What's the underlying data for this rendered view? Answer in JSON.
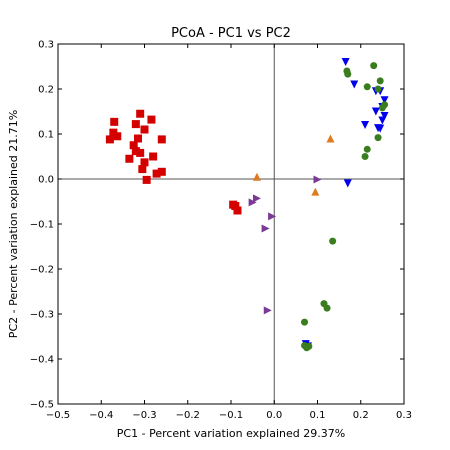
{
  "chart_data": {
    "type": "scatter",
    "title": "PCoA - PC1 vs PC2",
    "xlabel": "PC1 - Percent variation explained 29.37%",
    "ylabel": "PC2 - Percent variation explained 21.71%",
    "xlim": [
      -0.5,
      0.3
    ],
    "ylim": [
      -0.5,
      0.3
    ],
    "xticks": [
      -0.5,
      -0.4,
      -0.3,
      -0.2,
      -0.1,
      0.0,
      0.1,
      0.2,
      0.3
    ],
    "yticks": [
      -0.5,
      -0.4,
      -0.3,
      -0.2,
      -0.1,
      0.0,
      0.1,
      0.2,
      0.3
    ],
    "xtick_labels": [
      "−0.5",
      "−0.4",
      "−0.3",
      "−0.2",
      "−0.1",
      "0.0",
      "0.1",
      "0.2",
      "0.3"
    ],
    "ytick_labels": [
      "−0.5",
      "−0.4",
      "−0.3",
      "−0.2",
      "−0.1",
      "0.0",
      "0.1",
      "0.2",
      "0.3"
    ],
    "zero_lines": true,
    "grid": false,
    "legend": "none",
    "series": [
      {
        "marker": "square",
        "color": "#d40000",
        "points": [
          [
            -0.37,
            0.127
          ],
          [
            -0.372,
            0.103
          ],
          [
            -0.38,
            0.088
          ],
          [
            -0.363,
            0.095
          ],
          [
            -0.31,
            0.145
          ],
          [
            -0.284,
            0.132
          ],
          [
            -0.3,
            0.11
          ],
          [
            -0.32,
            0.122
          ],
          [
            -0.315,
            0.09
          ],
          [
            -0.26,
            0.088
          ],
          [
            -0.325,
            0.075
          ],
          [
            -0.32,
            0.062
          ],
          [
            -0.31,
            0.058
          ],
          [
            -0.335,
            0.045
          ],
          [
            -0.3,
            0.037
          ],
          [
            -0.305,
            0.022
          ],
          [
            -0.28,
            0.05
          ],
          [
            -0.272,
            0.012
          ],
          [
            -0.26,
            0.016
          ],
          [
            -0.295,
            -0.002
          ],
          [
            -0.095,
            -0.057
          ],
          [
            -0.09,
            -0.06
          ],
          [
            -0.085,
            -0.07
          ]
        ]
      },
      {
        "marker": "triangle-down",
        "color": "#0000ee",
        "points": [
          [
            0.165,
            0.26
          ],
          [
            0.185,
            0.21
          ],
          [
            0.235,
            0.195
          ],
          [
            0.245,
            0.195
          ],
          [
            0.255,
            0.175
          ],
          [
            0.25,
            0.16
          ],
          [
            0.235,
            0.15
          ],
          [
            0.255,
            0.14
          ],
          [
            0.25,
            0.13
          ],
          [
            0.21,
            0.12
          ],
          [
            0.24,
            0.113
          ],
          [
            0.245,
            0.112
          ],
          [
            0.17,
            -0.01
          ],
          [
            0.073,
            -0.367
          ],
          [
            0.078,
            -0.372
          ]
        ]
      },
      {
        "marker": "circle",
        "color": "#3a7d1e",
        "points": [
          [
            0.23,
            0.252
          ],
          [
            0.168,
            0.24
          ],
          [
            0.17,
            0.233
          ],
          [
            0.245,
            0.218
          ],
          [
            0.215,
            0.205
          ],
          [
            0.24,
            0.2
          ],
          [
            0.255,
            0.165
          ],
          [
            0.25,
            0.158
          ],
          [
            0.24,
            0.092
          ],
          [
            0.215,
            0.066
          ],
          [
            0.21,
            0.05
          ],
          [
            0.135,
            -0.138
          ],
          [
            0.115,
            -0.277
          ],
          [
            0.122,
            -0.287
          ],
          [
            0.07,
            -0.318
          ],
          [
            0.07,
            -0.37
          ],
          [
            0.08,
            -0.372
          ],
          [
            0.075,
            -0.375
          ]
        ]
      },
      {
        "marker": "triangle-up",
        "color": "#e07a20",
        "points": [
          [
            -0.04,
            0.005
          ],
          [
            0.13,
            0.09
          ],
          [
            0.095,
            -0.028
          ]
        ]
      },
      {
        "marker": "triangle-right",
        "color": "#7a3a96",
        "points": [
          [
            0.1,
            -0.001
          ],
          [
            -0.04,
            -0.043
          ],
          [
            -0.05,
            -0.052
          ],
          [
            -0.005,
            -0.083
          ],
          [
            -0.02,
            -0.11
          ],
          [
            -0.015,
            -0.292
          ]
        ]
      }
    ]
  }
}
